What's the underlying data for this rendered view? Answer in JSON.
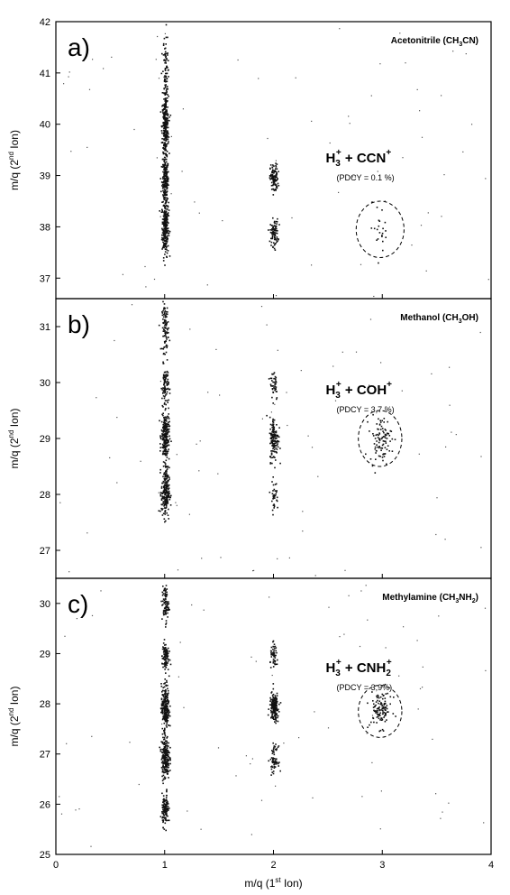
{
  "chart_data": [
    {
      "type": "scatter",
      "panel_label": "a)",
      "compound": "Acetonitrile (CH3CN)",
      "compound_parts": [
        "Acetonitrile (CH",
        "3",
        "CN)"
      ],
      "ion_pair": {
        "h_sub": "3",
        "h_sup": "+",
        "plus": "+",
        "partner": "CCN",
        "partner_sub": "",
        "partner_sup": "+"
      },
      "pdcy_text": "(PDCY = 0.1 %)",
      "xlim": [
        0,
        4
      ],
      "ylim": [
        36.6,
        42
      ],
      "yticks": [
        37,
        38,
        39,
        40,
        41,
        42
      ],
      "clusters": [
        {
          "x": 1,
          "y": 38.0,
          "sx": 0.015,
          "sy": 0.28,
          "n": 240
        },
        {
          "x": 1,
          "y": 38.9,
          "sx": 0.015,
          "sy": 0.22,
          "n": 200
        },
        {
          "x": 1,
          "y": 39.95,
          "sx": 0.015,
          "sy": 0.3,
          "n": 240
        },
        {
          "x": 1,
          "y": 40.9,
          "sx": 0.012,
          "sy": 0.45,
          "n": 110
        },
        {
          "x": 2,
          "y": 38.95,
          "sx": 0.018,
          "sy": 0.14,
          "n": 110
        },
        {
          "x": 2,
          "y": 37.9,
          "sx": 0.018,
          "sy": 0.13,
          "n": 90
        },
        {
          "x": 2.98,
          "y": 38.0,
          "sx": 0.05,
          "sy": 0.22,
          "n": 22
        }
      ],
      "ellipse": {
        "cx": 2.98,
        "cy": 37.95,
        "rx": 0.22,
        "ry": 0.55
      }
    },
    {
      "type": "scatter",
      "panel_label": "b)",
      "compound": "Methanol (CH3OH)",
      "compound_parts": [
        "Methanol (CH",
        "3",
        "OH)"
      ],
      "ion_pair": {
        "h_sub": "3",
        "h_sup": "+",
        "plus": "+",
        "partner": "COH",
        "partner_sub": "",
        "partner_sup": "+"
      },
      "pdcy_text": "(PDCY = 3,7 %)",
      "xlim": [
        0,
        4
      ],
      "ylim": [
        26.5,
        31.5
      ],
      "yticks": [
        27,
        28,
        29,
        30,
        31
      ],
      "clusters": [
        {
          "x": 1,
          "y": 31.0,
          "sx": 0.015,
          "sy": 0.22,
          "n": 100
        },
        {
          "x": 1,
          "y": 29.95,
          "sx": 0.015,
          "sy": 0.18,
          "n": 80
        },
        {
          "x": 1,
          "y": 29.05,
          "sx": 0.018,
          "sy": 0.22,
          "n": 240
        },
        {
          "x": 1,
          "y": 28.05,
          "sx": 0.018,
          "sy": 0.22,
          "n": 220
        },
        {
          "x": 2,
          "y": 30.0,
          "sx": 0.018,
          "sy": 0.15,
          "n": 45
        },
        {
          "x": 2,
          "y": 29.0,
          "sx": 0.02,
          "sy": 0.2,
          "n": 140
        },
        {
          "x": 2,
          "y": 28.0,
          "sx": 0.018,
          "sy": 0.13,
          "n": 35
        },
        {
          "x": 2.98,
          "y": 29.0,
          "sx": 0.05,
          "sy": 0.2,
          "n": 95
        }
      ],
      "ellipse": {
        "cx": 2.98,
        "cy": 29.0,
        "rx": 0.2,
        "ry": 0.5
      }
    },
    {
      "type": "scatter",
      "panel_label": "c)",
      "compound": "Methylamine (CH3NH2)",
      "compound_parts": [
        "Methylamine (CH",
        "3",
        "NH",
        "2",
        ")"
      ],
      "ion_pair": {
        "h_sub": "3",
        "h_sup": "+",
        "plus": "+",
        "partner": "CNH",
        "partner_sub": "2",
        "partner_sup": "+"
      },
      "pdcy_text": "(PDCY = 3,9%)",
      "xlim": [
        0,
        4
      ],
      "ylim": [
        25,
        30.5
      ],
      "yticks": [
        25,
        26,
        27,
        28,
        29,
        30
      ],
      "clusters": [
        {
          "x": 1,
          "y": 30.0,
          "sx": 0.015,
          "sy": 0.18,
          "n": 90
        },
        {
          "x": 1,
          "y": 28.95,
          "sx": 0.015,
          "sy": 0.15,
          "n": 100
        },
        {
          "x": 1,
          "y": 27.95,
          "sx": 0.018,
          "sy": 0.22,
          "n": 230
        },
        {
          "x": 1,
          "y": 26.95,
          "sx": 0.018,
          "sy": 0.22,
          "n": 230
        },
        {
          "x": 1,
          "y": 25.9,
          "sx": 0.015,
          "sy": 0.15,
          "n": 120
        },
        {
          "x": 2,
          "y": 28.95,
          "sx": 0.018,
          "sy": 0.12,
          "n": 50
        },
        {
          "x": 2,
          "y": 27.95,
          "sx": 0.02,
          "sy": 0.14,
          "n": 170
        },
        {
          "x": 2,
          "y": 26.9,
          "sx": 0.018,
          "sy": 0.13,
          "n": 60
        },
        {
          "x": 2.98,
          "y": 27.9,
          "sx": 0.05,
          "sy": 0.18,
          "n": 110
        }
      ],
      "ellipse": {
        "cx": 2.98,
        "cy": 27.85,
        "rx": 0.2,
        "ry": 0.52
      }
    }
  ],
  "axes": {
    "xticks": [
      0,
      1,
      2,
      3,
      4
    ],
    "xlabel_parts": [
      "m/q (1",
      "st",
      " Ion)"
    ],
    "ylabel_parts": [
      "m/q (2",
      "nd",
      " Ion)"
    ]
  }
}
